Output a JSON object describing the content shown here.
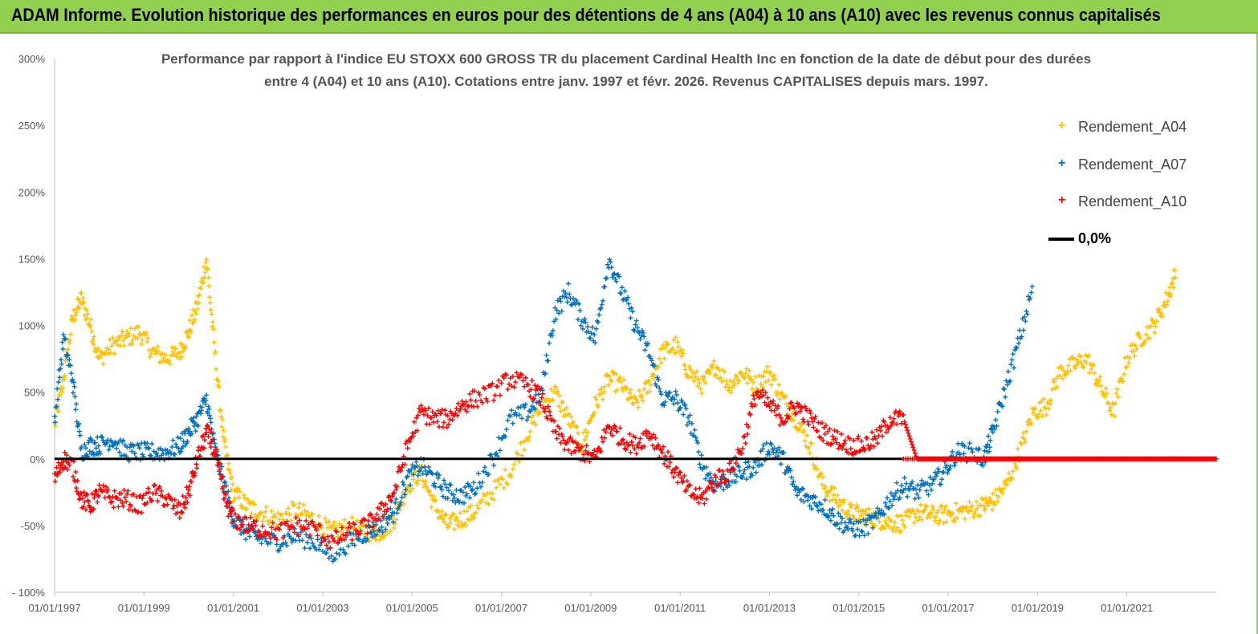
{
  "banner": {
    "text": "ADAM Informe. Evolution historique des performances en euros pour des détentions de 4 ans (A04) à 10 ans (A10) avec les revenus connus capitalisés"
  },
  "colors": {
    "banner": "#92d050",
    "a04": "#ffc000",
    "a07": "#0070c0",
    "a10": "#ff0000",
    "zero": "#000000"
  },
  "chart_data": {
    "type": "scatter",
    "title_line1": "Performance par rapport à l'indice EU STOXX 600 GROSS TR  du placement Cardinal Health Inc en fonction de la date de début pour des durées",
    "title_line2": "entre 4 (A04) et 10 ans (A10). Cotations entre janv. 1997 et févr. 2026. Revenus CAPITALISES depuis mars. 1997.",
    "xlim": [
      1997.0,
      2023.0
    ],
    "ylim": [
      -100,
      300
    ],
    "y_ticks": [
      {
        "value": 300,
        "label": "300%"
      },
      {
        "value": 250,
        "label": "250%"
      },
      {
        "value": 200,
        "label": "200%"
      },
      {
        "value": 150,
        "label": "150%"
      },
      {
        "value": 100,
        "label": "100%"
      },
      {
        "value": 50,
        "label": "50%"
      },
      {
        "value": 0,
        "label": "0%"
      },
      {
        "value": -50,
        "label": "-50%"
      },
      {
        "value": -100,
        "label": "- 100%"
      }
    ],
    "x_ticks": [
      {
        "value": 1997,
        "label": "01/01/1997"
      },
      {
        "value": 1999,
        "label": "01/01/1999"
      },
      {
        "value": 2001,
        "label": "01/01/2001"
      },
      {
        "value": 2003,
        "label": "01/01/2003"
      },
      {
        "value": 2005,
        "label": "01/01/2005"
      },
      {
        "value": 2007,
        "label": "01/01/2007"
      },
      {
        "value": 2009,
        "label": "01/01/2009"
      },
      {
        "value": 2011,
        "label": "01/01/2011"
      },
      {
        "value": 2013,
        "label": "01/01/2013"
      },
      {
        "value": 2015,
        "label": "01/01/2015"
      },
      {
        "value": 2017,
        "label": "01/01/2017"
      },
      {
        "value": 2019,
        "label": "01/01/2019"
      },
      {
        "value": 2021,
        "label": "01/01/2021"
      }
    ],
    "legend": [
      {
        "label": "Rendement_A04",
        "marker": "+"
      },
      {
        "label": "Rendement_A07",
        "marker": "+"
      },
      {
        "label": "Rendement_A10",
        "marker": "+"
      },
      {
        "label": "0,0%",
        "marker": "line"
      }
    ],
    "series": [
      {
        "name": "Rendement_A04",
        "color": "#ffc000",
        "x": [
          1997.0,
          1997.2,
          1997.4,
          1997.6,
          1997.8,
          1998.0,
          1998.3,
          1998.6,
          1998.9,
          1999.2,
          1999.5,
          1999.8,
          2000.0,
          2000.2,
          2000.4,
          2000.6,
          2000.8,
          2001.0,
          2001.3,
          2001.6,
          2002.0,
          2002.4,
          2002.8,
          2003.2,
          2003.6,
          2004.0,
          2004.3,
          2004.6,
          2004.9,
          2005.2,
          2005.5,
          2005.8,
          2006.1,
          2006.4,
          2006.8,
          2007.2,
          2007.6,
          2007.9,
          2008.2,
          2008.5,
          2008.8,
          2009.1,
          2009.4,
          2009.7,
          2010.0,
          2010.3,
          2010.6,
          2010.9,
          2011.2,
          2011.5,
          2011.8,
          2012.1,
          2012.4,
          2012.7,
          2013.0,
          2013.3,
          2013.6,
          2013.9,
          2014.2,
          2014.5,
          2014.8,
          2015.1,
          2015.4,
          2015.7,
          2016.0,
          2016.3,
          2016.6,
          2016.9,
          2017.2,
          2017.5,
          2017.8,
          2018.0,
          2018.3,
          2018.6,
          2018.9,
          2019.2,
          2019.5,
          2019.8,
          2020.1,
          2020.4,
          2020.7,
          2021.0,
          2021.3,
          2021.6,
          2021.9,
          2022.1
        ],
        "y": [
          25,
          60,
          105,
          120,
          100,
          75,
          85,
          90,
          95,
          80,
          75,
          80,
          95,
          115,
          150,
          75,
          10,
          -25,
          -35,
          -40,
          -45,
          -38,
          -45,
          -55,
          -50,
          -55,
          -55,
          -45,
          -20,
          -10,
          -35,
          -50,
          -45,
          -40,
          -25,
          -10,
          20,
          40,
          50,
          30,
          10,
          40,
          60,
          55,
          40,
          55,
          80,
          85,
          65,
          55,
          70,
          55,
          65,
          55,
          65,
          45,
          30,
          10,
          -20,
          -30,
          -40,
          -42,
          -45,
          -48,
          -48,
          -40,
          -42,
          -42,
          -40,
          -38,
          -35,
          -32,
          -20,
          5,
          35,
          40,
          65,
          70,
          75,
          55,
          35,
          75,
          90,
          100,
          120,
          140
        ]
      },
      {
        "name": "Rendement_A07",
        "color": "#0070c0",
        "x": [
          1997.0,
          1997.2,
          1997.4,
          1997.6,
          1997.8,
          1998.0,
          1998.3,
          1998.6,
          1998.9,
          1999.2,
          1999.5,
          1999.8,
          2000.0,
          2000.2,
          2000.4,
          2000.6,
          2000.8,
          2001.0,
          2001.3,
          2001.6,
          2002.0,
          2002.4,
          2002.8,
          2003.2,
          2003.6,
          2004.0,
          2004.3,
          2004.6,
          2004.9,
          2005.2,
          2005.5,
          2005.8,
          2006.1,
          2006.4,
          2006.8,
          2007.2,
          2007.6,
          2007.9,
          2008.2,
          2008.5,
          2008.8,
          2009.1,
          2009.4,
          2009.7,
          2010.0,
          2010.3,
          2010.6,
          2010.9,
          2011.2,
          2011.5,
          2011.8,
          2012.1,
          2012.4,
          2012.7,
          2013.0,
          2013.3,
          2013.6,
          2013.9,
          2014.2,
          2014.5,
          2014.8,
          2015.1,
          2015.4,
          2015.7,
          2016.0,
          2016.3,
          2016.6,
          2016.9,
          2017.2,
          2017.5,
          2017.8,
          2018.0,
          2018.3,
          2018.6,
          2018.9
        ],
        "y": [
          30,
          90,
          60,
          5,
          10,
          10,
          15,
          5,
          5,
          5,
          5,
          10,
          20,
          30,
          45,
          5,
          -20,
          -45,
          -55,
          -60,
          -62,
          -58,
          -62,
          -72,
          -62,
          -55,
          -50,
          -40,
          -15,
          -5,
          -15,
          -25,
          -28,
          -22,
          0,
          30,
          35,
          50,
          110,
          125,
          105,
          90,
          150,
          125,
          100,
          80,
          45,
          45,
          30,
          -5,
          -20,
          -15,
          -10,
          -5,
          10,
          0,
          -25,
          -30,
          -35,
          -45,
          -52,
          -52,
          -45,
          -30,
          -20,
          -25,
          -20,
          -10,
          5,
          5,
          0,
          20,
          55,
          90,
          130
        ]
      },
      {
        "name": "Rendement_A10",
        "color": "#ff0000",
        "x": [
          1997.0,
          1997.2,
          1997.4,
          1997.6,
          1997.8,
          1998.0,
          1998.3,
          1998.6,
          1998.9,
          1999.2,
          1999.5,
          1999.8,
          2000.0,
          2000.2,
          2000.4,
          2000.6,
          2000.8,
          2001.0,
          2001.3,
          2001.6,
          2002.0,
          2002.4,
          2002.8,
          2003.2,
          2003.6,
          2004.0,
          2004.3,
          2004.6,
          2004.9,
          2005.2,
          2005.5,
          2005.8,
          2006.1,
          2006.4,
          2006.8,
          2007.2,
          2007.6,
          2007.9,
          2008.2,
          2008.5,
          2008.8,
          2009.1,
          2009.4,
          2009.7,
          2010.0,
          2010.3,
          2010.6,
          2010.9,
          2011.2,
          2011.5,
          2011.8,
          2012.1,
          2012.4,
          2012.7,
          2013.0,
          2013.3,
          2013.6,
          2013.9,
          2014.2,
          2014.5,
          2014.8,
          2015.1,
          2015.4,
          2015.7,
          2016.0,
          2016.3,
          2016.6,
          2016.9,
          2017.2,
          2017.5,
          2017.8,
          2018.0,
          2018.3,
          2018.6,
          2018.9,
          2019.2,
          2019.5,
          2019.8,
          2020.1,
          2020.4,
          2020.7,
          2021.0,
          2021.3,
          2021.6,
          2021.9,
          2022.1,
          2022.4,
          2022.7,
          2023.0
        ],
        "y": [
          -15,
          0,
          -5,
          -30,
          -35,
          -25,
          -30,
          -30,
          -35,
          -25,
          -30,
          -40,
          -25,
          0,
          20,
          5,
          -30,
          -45,
          -50,
          -52,
          -55,
          -50,
          -52,
          -62,
          -55,
          -50,
          -40,
          -25,
          10,
          35,
          30,
          30,
          40,
          45,
          50,
          60,
          55,
          45,
          20,
          10,
          5,
          0,
          25,
          15,
          10,
          20,
          5,
          -10,
          -25,
          -30,
          -15,
          -10,
          10,
          50,
          40,
          30,
          40,
          30,
          20,
          15,
          10,
          10,
          15,
          30,
          30,
          0,
          0,
          0,
          0,
          0,
          0,
          0,
          0,
          0,
          0,
          0,
          0,
          0,
          0,
          0,
          0,
          0,
          0,
          0,
          0,
          0,
          0,
          0,
          0
        ]
      }
    ]
  }
}
